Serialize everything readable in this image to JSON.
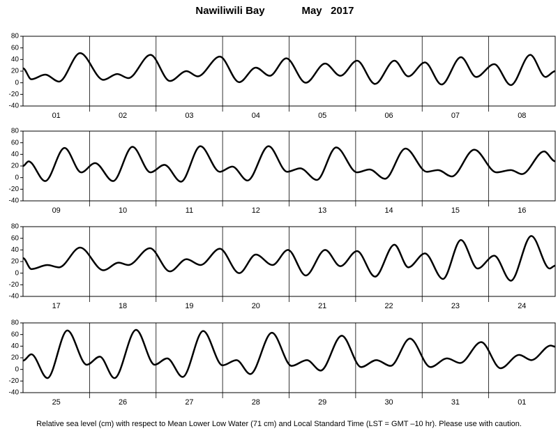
{
  "header": {
    "station": "Nawiliwili Bay",
    "date": "May   2017"
  },
  "footer": "Relative sea level (cm) with respect to Mean Lower Low Water (71 cm) and Local Standard Time (LST = GMT –10 hr). Please use with caution.",
  "chart_data": [
    {
      "type": "line",
      "categories": [
        "01",
        "02",
        "03",
        "04",
        "05",
        "06",
        "07",
        "08"
      ],
      "x": [
        0,
        3,
        8,
        13,
        20.6,
        29,
        34,
        38,
        46,
        53,
        59,
        63,
        71,
        78,
        84,
        89,
        95,
        102,
        109,
        114.5,
        120.5,
        127,
        134,
        139,
        145,
        151,
        158,
        163.5,
        170,
        176,
        183,
        188.5,
        192
      ],
      "values": [
        25,
        6,
        14,
        2,
        51,
        5,
        15,
        8,
        48,
        3,
        20,
        11,
        45,
        1,
        26,
        12,
        42,
        0,
        33,
        12,
        38,
        -2,
        38,
        11,
        35,
        -3,
        44,
        10,
        32,
        -4,
        48,
        10,
        20
      ],
      "color": "#000000",
      "xlim": [
        0,
        192
      ],
      "xticks": [
        24,
        48,
        72,
        96,
        120,
        144,
        168
      ],
      "ylim": [
        -40,
        80
      ],
      "yticks": [
        -40,
        -20,
        0,
        20,
        40,
        60,
        80
      ]
    },
    {
      "type": "line",
      "categories": [
        "09",
        "10",
        "11",
        "12",
        "13",
        "14",
        "15",
        "16"
      ],
      "x": [
        0,
        2,
        8,
        15,
        21,
        26,
        32.5,
        39.5,
        46,
        51,
        57,
        64,
        71,
        75.5,
        81,
        88.6,
        95.3,
        100,
        106,
        113,
        120.5,
        125,
        130.6,
        138,
        145.7,
        149.7,
        154.7,
        162.8,
        170.8,
        176,
        180,
        188,
        192
      ],
      "values": [
        20,
        28,
        -6,
        51,
        9,
        25,
        -6,
        53,
        9,
        22,
        -7,
        54,
        10,
        19,
        -5,
        54,
        10,
        16,
        -4,
        52,
        9,
        14,
        -2,
        50,
        10,
        13,
        2,
        48,
        9,
        13,
        6,
        45,
        28
      ],
      "color": "#000000",
      "xlim": [
        0,
        192
      ],
      "xticks": [
        24,
        48,
        72,
        96,
        120,
        144,
        168
      ],
      "ylim": [
        -40,
        80
      ],
      "yticks": [
        -40,
        -20,
        0,
        20,
        40,
        60,
        80
      ]
    },
    {
      "type": "line",
      "categories": [
        "17",
        "18",
        "19",
        "20",
        "21",
        "22",
        "23",
        "24"
      ],
      "x": [
        0,
        3,
        8.8,
        13,
        20.6,
        29,
        34.5,
        38,
        45.8,
        53,
        59,
        64,
        71,
        78,
        84,
        90,
        95.6,
        102,
        109,
        114.5,
        120.5,
        127,
        134,
        139,
        145,
        151.5,
        158,
        164,
        170,
        176,
        183.4,
        190,
        192
      ],
      "values": [
        26,
        7,
        14,
        10,
        44,
        5,
        18,
        14,
        43,
        3,
        24,
        14,
        42,
        0,
        32,
        14,
        40,
        -4,
        40,
        12,
        38,
        -6,
        49,
        10,
        34,
        -10,
        57,
        8,
        30,
        -13,
        64,
        8,
        13
      ],
      "color": "#000000",
      "xlim": [
        0,
        192
      ],
      "xticks": [
        24,
        48,
        72,
        96,
        120,
        144,
        168
      ],
      "ylim": [
        -40,
        80
      ],
      "yticks": [
        -40,
        -20,
        0,
        20,
        40,
        60,
        80
      ]
    },
    {
      "type": "line",
      "categories": [
        "25",
        "26",
        "27",
        "28",
        "29",
        "30",
        "31",
        "01"
      ],
      "x": [
        0,
        3,
        8.8,
        16,
        23,
        27.7,
        33,
        40.8,
        47.5,
        52,
        57.6,
        65,
        72,
        77,
        82,
        89.8,
        96.9,
        102.4,
        107.4,
        115,
        122,
        127.5,
        132.6,
        139.6,
        147,
        153,
        157.7,
        165.3,
        172.3,
        179,
        183.4,
        190.4,
        192
      ],
      "values": [
        15,
        26,
        -15,
        67,
        8,
        22,
        -15,
        68,
        8,
        19,
        -13,
        66,
        7,
        16,
        -8,
        63,
        6,
        16,
        -2,
        58,
        4,
        16,
        6,
        53,
        4,
        19,
        11,
        47,
        2,
        25,
        16,
        41,
        39
      ],
      "color": "#000000",
      "xlim": [
        0,
        192
      ],
      "xticks": [
        24,
        48,
        72,
        96,
        120,
        144,
        168
      ],
      "ylim": [
        -40,
        80
      ],
      "yticks": [
        -40,
        -20,
        0,
        20,
        40,
        60,
        80
      ]
    }
  ]
}
